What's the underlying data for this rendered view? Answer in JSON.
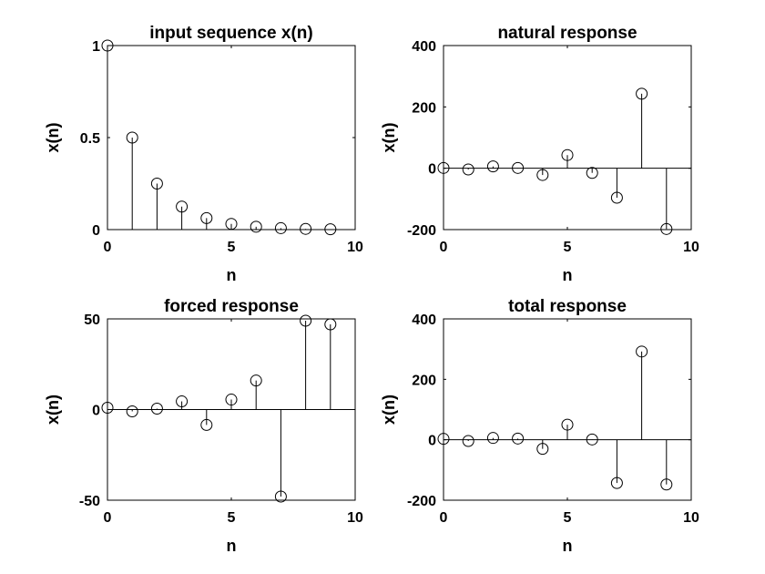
{
  "chart_data": [
    {
      "type": "stem",
      "title": "input sequence x(n)",
      "xlabel": "n",
      "ylabel": "x(n)",
      "xlim": [
        0,
        10
      ],
      "ylim": [
        0,
        1
      ],
      "xticks": [
        0,
        5,
        10
      ],
      "yticks": [
        0,
        0.5,
        1
      ],
      "x": [
        0,
        1,
        2,
        3,
        4,
        5,
        6,
        7,
        8,
        9
      ],
      "values": [
        1,
        0.5,
        0.25,
        0.125,
        0.0625,
        0.03125,
        0.0156,
        0.0078,
        0.0039,
        0.002
      ]
    },
    {
      "type": "stem",
      "title": "natural response",
      "xlabel": "n",
      "ylabel": "x(n)",
      "xlim": [
        0,
        10
      ],
      "ylim": [
        -200,
        400
      ],
      "xticks": [
        0,
        5,
        10
      ],
      "yticks": [
        -200,
        0,
        200,
        400
      ],
      "x": [
        0,
        1,
        2,
        3,
        4,
        5,
        6,
        7,
        8,
        9
      ],
      "values": [
        1,
        -4,
        6,
        1,
        -22,
        43,
        -15,
        -96,
        243,
        -198
      ]
    },
    {
      "type": "stem",
      "title": "forced response",
      "xlabel": "n",
      "ylabel": "x(n)",
      "xlim": [
        0,
        10
      ],
      "ylim": [
        -50,
        50
      ],
      "xticks": [
        0,
        5,
        10
      ],
      "yticks": [
        -50,
        0,
        50
      ],
      "x": [
        0,
        1,
        2,
        3,
        4,
        5,
        6,
        7,
        8,
        9
      ],
      "values": [
        1,
        -1,
        0.5,
        4.5,
        -8.5,
        5.5,
        16,
        -48,
        49,
        47
      ]
    },
    {
      "type": "stem",
      "title": "total response",
      "xlabel": "n",
      "ylabel": "x(n)",
      "xlim": [
        0,
        10
      ],
      "ylim": [
        -200,
        400
      ],
      "xticks": [
        0,
        5,
        10
      ],
      "yticks": [
        -200,
        0,
        200,
        400
      ],
      "x": [
        0,
        1,
        2,
        3,
        4,
        5,
        6,
        7,
        8,
        9
      ],
      "values": [
        3,
        -4,
        6,
        4,
        -30,
        50,
        1,
        -143,
        292,
        -148
      ]
    }
  ]
}
